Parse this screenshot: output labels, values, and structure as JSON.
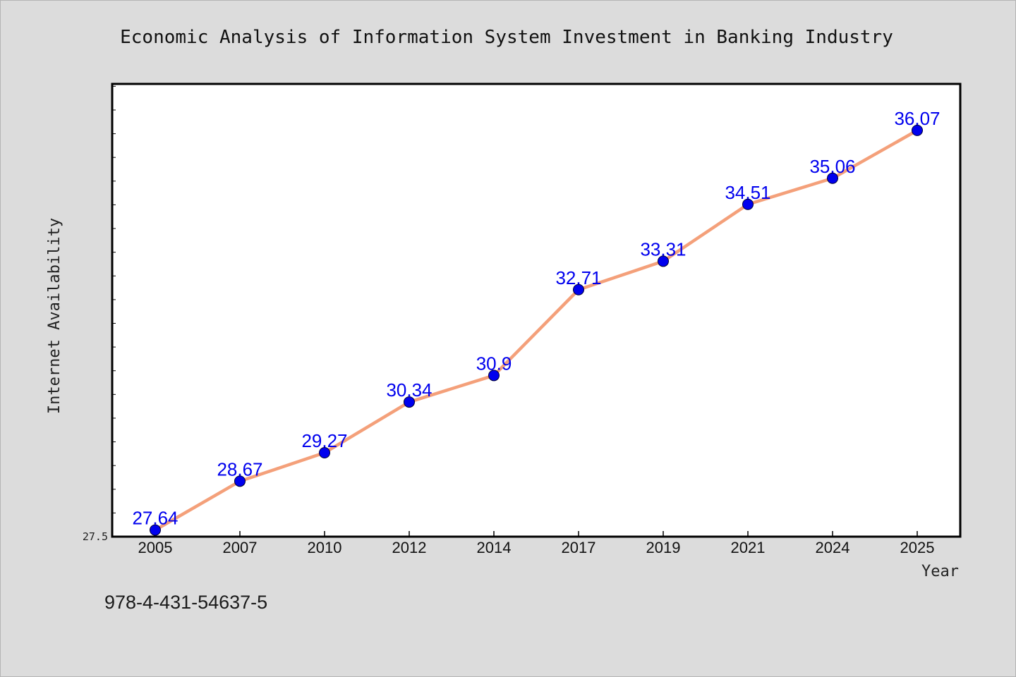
{
  "isbn": "978-4-431-54637-5",
  "colors": {
    "background": "#dcdcdc",
    "plot_background": "#ffffff",
    "line": "#f4a07a",
    "marker": "#0000ee",
    "data_label": "#0000ee"
  },
  "chart_data": {
    "type": "line",
    "title": "Economic Analysis of Information System Investment in Banking Industry",
    "xlabel": "Year",
    "ylabel": "Internet Availability",
    "categories": [
      "2005",
      "2007",
      "2010",
      "2012",
      "2014",
      "2017",
      "2019",
      "2021",
      "2024",
      "2025"
    ],
    "series": [
      {
        "values": [
          27.64,
          28.67,
          29.27,
          30.34,
          30.9,
          32.71,
          33.31,
          34.51,
          35.06,
          36.07
        ],
        "labels": [
          "27.64",
          "28.67",
          "29.27",
          "30.34",
          "30.9",
          "32.71",
          "33.31",
          "34.51",
          "35.06",
          "36.07"
        ]
      }
    ],
    "ylim": [
      27.5,
      37.05
    ],
    "y_tick_labels": [
      "27.5"
    ],
    "grid": false,
    "legend": "none"
  }
}
